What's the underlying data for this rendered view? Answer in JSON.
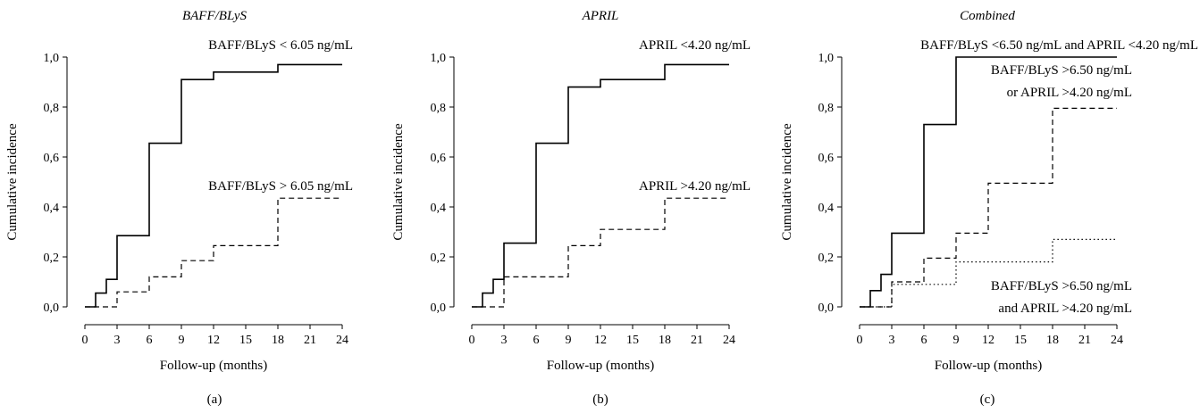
{
  "chart_data": [
    {
      "type": "line",
      "step": true,
      "panel_label": "(a)",
      "title": "BAFF/BLyS",
      "xlabel": "Follow-up (months)",
      "ylabel": "Cumulative incidence",
      "xlim": [
        0,
        24
      ],
      "ylim": [
        0,
        1
      ],
      "xticks": [
        "0",
        "3",
        "6",
        "9",
        "12",
        "15",
        "18",
        "21",
        "24"
      ],
      "yticks": [
        "0,0",
        "0,2",
        "0,4",
        "0,6",
        "0,8",
        "1,0"
      ],
      "grid": false,
      "series": [
        {
          "name": "BAFF/BLyS < 6.05 ng/mL",
          "style": "solid",
          "x": [
            0,
            1,
            2,
            3,
            6,
            9,
            12,
            18,
            24
          ],
          "y": [
            0,
            0.055,
            0.11,
            0.285,
            0.655,
            0.91,
            0.94,
            0.97,
            0.97
          ]
        },
        {
          "name": "BAFF/BLyS > 6.05 ng/mL",
          "style": "dashed",
          "x": [
            0,
            2,
            3,
            6,
            9,
            12,
            18,
            24
          ],
          "y": [
            0,
            0,
            0.06,
            0.12,
            0.185,
            0.245,
            0.435,
            0.435
          ]
        }
      ]
    },
    {
      "type": "line",
      "step": true,
      "panel_label": "(b)",
      "title": "APRIL",
      "xlabel": "Follow-up (months)",
      "ylabel": "Cumulative incidence",
      "xlim": [
        0,
        24
      ],
      "ylim": [
        0,
        1
      ],
      "xticks": [
        "0",
        "3",
        "6",
        "9",
        "12",
        "15",
        "18",
        "21",
        "24"
      ],
      "yticks": [
        "0,0",
        "0,2",
        "0,4",
        "0,6",
        "0,8",
        "1,0"
      ],
      "grid": false,
      "series": [
        {
          "name": "APRIL <4.20 ng/mL",
          "style": "solid",
          "x": [
            0,
            1,
            2,
            3,
            6,
            9,
            12,
            18,
            24
          ],
          "y": [
            0,
            0.055,
            0.11,
            0.255,
            0.655,
            0.88,
            0.91,
            0.97,
            0.97
          ]
        },
        {
          "name": "APRIL >4.20 ng/mL",
          "style": "dashed",
          "x": [
            0,
            2,
            3,
            9,
            12,
            18,
            24
          ],
          "y": [
            0,
            0,
            0.12,
            0.245,
            0.31,
            0.435,
            0.435
          ]
        }
      ]
    },
    {
      "type": "line",
      "step": true,
      "panel_label": "(c)",
      "title": "Combined",
      "xlabel": "Follow-up (months)",
      "ylabel": "Cumulative incidence",
      "xlim": [
        0,
        24
      ],
      "ylim": [
        0,
        1
      ],
      "xticks": [
        "0",
        "3",
        "6",
        "9",
        "12",
        "15",
        "18",
        "21",
        "24"
      ],
      "yticks": [
        "0,0",
        "0,2",
        "0,4",
        "0,6",
        "0,8",
        "1,0"
      ],
      "grid": false,
      "series": [
        {
          "name": "BAFF/BLyS <6.50 ng/mL and APRIL <4.20 ng/mL",
          "style": "solid",
          "x": [
            0,
            1,
            2,
            3,
            6,
            9,
            24
          ],
          "y": [
            0,
            0.065,
            0.13,
            0.295,
            0.73,
            1.0,
            1.0
          ]
        },
        {
          "name": "BAFF/BLyS >6.50 ng/mL or APRIL >4.20 ng/mL",
          "style": "dashed",
          "x": [
            0,
            2,
            3,
            6,
            9,
            12,
            18,
            24
          ],
          "y": [
            0,
            0,
            0.1,
            0.195,
            0.295,
            0.495,
            0.795,
            0.795
          ]
        },
        {
          "name": "BAFF/BLyS >6.50 ng/mL and APRIL >4.20 ng/mL",
          "style": "dotted",
          "x": [
            0,
            3,
            9,
            18,
            24
          ],
          "y": [
            0,
            0.09,
            0.18,
            0.27,
            0.27
          ]
        }
      ]
    }
  ],
  "annotations": {
    "a": [
      "BAFF/BLyS < 6.05 ng/mL",
      "BAFF/BLyS > 6.05 ng/mL"
    ],
    "b": [
      "APRIL <4.20 ng/mL",
      "APRIL >4.20 ng/mL"
    ],
    "c": [
      "BAFF/BLyS <6.50 ng/mL and APRIL <4.20 ng/mL",
      "BAFF/BLyS >6.50 ng/mL",
      "or APRIL >4.20 ng/mL",
      "BAFF/BLyS >6.50 ng/mL",
      "and APRIL >4.20 ng/mL"
    ]
  }
}
